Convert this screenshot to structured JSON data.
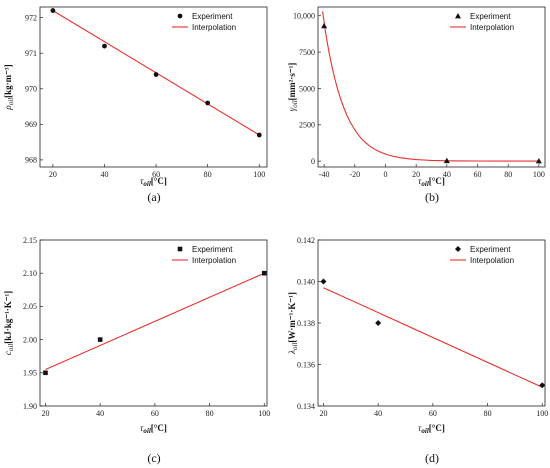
{
  "chart_data": [
    {
      "type": "scatter",
      "panel_label": "(a)",
      "xlabel_main": "τ",
      "xlabel_sub": "oil",
      "xlabel_unit": "[°C]",
      "ylabel_main": "ρ",
      "ylabel_sub": "oil",
      "ylabel_unit": "[kg·m⁻³]",
      "xlim": [
        15,
        103
      ],
      "ylim": [
        967.8,
        972.3
      ],
      "xticks": [
        20,
        40,
        60,
        80,
        100
      ],
      "yticks": [
        968,
        969,
        970,
        971,
        972
      ],
      "ytick_labels": [
        "968",
        "969",
        "970",
        "971",
        "972"
      ],
      "marker": "circle",
      "series": [
        {
          "name": "Experiment",
          "kind": "points",
          "x": [
            20,
            40,
            60,
            80,
            100
          ],
          "y": [
            972.2,
            971.2,
            970.4,
            969.6,
            968.7
          ]
        },
        {
          "name": "Interpolation",
          "kind": "line",
          "color": "#e8302c",
          "x": [
            20,
            100
          ],
          "y": [
            972.2,
            968.7
          ]
        }
      ]
    },
    {
      "type": "scatter",
      "panel_label": "(b)",
      "xlabel_main": "τ",
      "xlabel_sub": "oil",
      "xlabel_unit": "[°C]",
      "ylabel_main": "γ",
      "ylabel_sub": "oil",
      "ylabel_unit": "[mm²·s⁻¹]",
      "xlim": [
        -44,
        104
      ],
      "ylim": [
        -400,
        10600
      ],
      "xticks": [
        -40,
        -20,
        0,
        20,
        40,
        60,
        80,
        100
      ],
      "yticks": [
        0,
        2500,
        5000,
        7500,
        10000
      ],
      "ytick_labels": [
        "0",
        "2500",
        "5000",
        "7500",
        "10,000"
      ],
      "marker": "triangle",
      "series": [
        {
          "name": "Experiment",
          "kind": "points",
          "x": [
            -40,
            40,
            100
          ],
          "y": [
            9300,
            35,
            10
          ]
        },
        {
          "name": "Interpolation",
          "kind": "curve",
          "color": "#e8302c",
          "x": [
            -41,
            -39,
            -37,
            -35,
            -33,
            -31,
            -29,
            -27,
            -25,
            -23,
            -21,
            -19,
            -17,
            -15,
            -13,
            -11,
            -9,
            -7,
            -5,
            -3,
            -1,
            1,
            3,
            6,
            10,
            15,
            20,
            25,
            30,
            40,
            50,
            60,
            70,
            80,
            90,
            100
          ],
          "y": [
            10300,
            8800,
            7600,
            6550,
            5650,
            4870,
            4200,
            3620,
            3120,
            2690,
            2320,
            2000,
            1720,
            1480,
            1280,
            1100,
            950,
            820,
            705,
            610,
            525,
            452,
            390,
            312,
            233,
            162,
            112,
            78,
            55,
            28,
            16,
            11,
            9,
            8,
            7,
            6
          ]
        }
      ]
    },
    {
      "type": "scatter",
      "panel_label": "(c)",
      "xlabel_main": "τ",
      "xlabel_sub": "oil",
      "xlabel_unit": "[°C]",
      "ylabel_main": "c",
      "ylabel_sub": "oil",
      "ylabel_unit": "[kJ·kg⁻¹·K⁻¹]",
      "xlim": [
        18,
        101
      ],
      "ylim": [
        1.9,
        2.15
      ],
      "xticks": [
        20,
        40,
        60,
        80,
        100
      ],
      "yticks": [
        1.9,
        1.95,
        2.0,
        2.05,
        2.1,
        2.15
      ],
      "ytick_labels": [
        "1.90",
        "1.95",
        "2.00",
        "2.05",
        "2.10",
        "2.15"
      ],
      "marker": "square",
      "series": [
        {
          "name": "Experiment",
          "kind": "points",
          "x": [
            20,
            40,
            100
          ],
          "y": [
            1.95,
            2.0,
            2.1
          ]
        },
        {
          "name": "Interpolation",
          "kind": "line",
          "color": "#e8302c",
          "x": [
            20,
            100
          ],
          "y": [
            1.955,
            2.1
          ]
        }
      ]
    },
    {
      "type": "scatter",
      "panel_label": "(d)",
      "xlabel_main": "τ",
      "xlabel_sub": "oil",
      "xlabel_unit": "[°C]",
      "ylabel_main": "λ",
      "ylabel_sub": "oil",
      "ylabel_unit": "[W·m⁻¹·K⁻¹]",
      "xlim": [
        18,
        101
      ],
      "ylim": [
        0.134,
        0.142
      ],
      "xticks": [
        20,
        40,
        60,
        80,
        100
      ],
      "yticks": [
        0.134,
        0.136,
        0.138,
        0.14,
        0.142
      ],
      "ytick_labels": [
        "0.134",
        "0.136",
        "0.138",
        "0.140",
        "0.142"
      ],
      "marker": "diamond",
      "series": [
        {
          "name": "Experiment",
          "kind": "points",
          "x": [
            20,
            40,
            100
          ],
          "y": [
            0.14,
            0.138,
            0.135
          ]
        },
        {
          "name": "Interpolation",
          "kind": "line",
          "color": "#e8302c",
          "x": [
            20,
            100
          ],
          "y": [
            0.1397,
            0.1349
          ]
        }
      ]
    }
  ]
}
